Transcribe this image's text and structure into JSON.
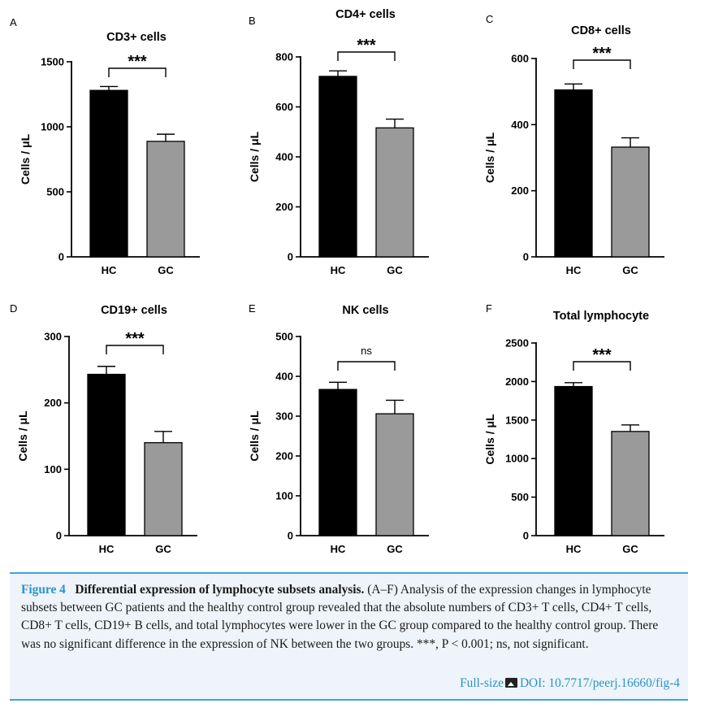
{
  "chart_data": [
    {
      "panel_letter": "A",
      "type": "bar",
      "title": "CD3+ cells",
      "ylabel": "Cells / μL",
      "categories": [
        "HC",
        "GC"
      ],
      "values": [
        1280,
        888
      ],
      "errors": [
        30,
        55
      ],
      "ylim": [
        0,
        1500
      ],
      "yticks": [
        0,
        500,
        1000,
        1500
      ],
      "significance": "***",
      "colors": [
        "#000000",
        "#9a9a9a"
      ]
    },
    {
      "panel_letter": "B",
      "type": "bar",
      "title": "CD4+ cells",
      "ylabel": "Cells / μL",
      "categories": [
        "HC",
        "GC"
      ],
      "values": [
        722,
        516
      ],
      "errors": [
        22,
        35
      ],
      "ylim": [
        0,
        800
      ],
      "yticks": [
        0,
        200,
        400,
        600,
        800
      ],
      "significance": "***",
      "colors": [
        "#000000",
        "#9a9a9a"
      ]
    },
    {
      "panel_letter": "C",
      "type": "bar",
      "title": "CD8+ cells",
      "ylabel": "Cells / μL",
      "categories": [
        "HC",
        "GC"
      ],
      "values": [
        505,
        332
      ],
      "errors": [
        18,
        28
      ],
      "ylim": [
        0,
        600
      ],
      "yticks": [
        0,
        200,
        400,
        600
      ],
      "significance": "***",
      "colors": [
        "#000000",
        "#9a9a9a"
      ]
    },
    {
      "panel_letter": "D",
      "type": "bar",
      "title": "CD19+ cells",
      "ylabel": "Cells / μL",
      "categories": [
        "HC",
        "GC"
      ],
      "values": [
        243,
        140
      ],
      "errors": [
        12,
        17
      ],
      "ylim": [
        0,
        300
      ],
      "yticks": [
        0,
        100,
        200,
        300
      ],
      "significance": "***",
      "colors": [
        "#000000",
        "#9a9a9a"
      ]
    },
    {
      "panel_letter": "E",
      "type": "bar",
      "title": "NK cells",
      "ylabel": "Cells / μL",
      "categories": [
        "HC",
        "GC"
      ],
      "values": [
        367,
        306
      ],
      "errors": [
        18,
        34
      ],
      "ylim": [
        0,
        500
      ],
      "yticks": [
        0,
        100,
        200,
        300,
        400,
        500
      ],
      "significance": "ns",
      "colors": [
        "#000000",
        "#9a9a9a"
      ]
    },
    {
      "panel_letter": "F",
      "type": "bar",
      "title": "Total lymphocyte",
      "ylabel": "Cells / μL",
      "categories": [
        "HC",
        "GC"
      ],
      "values": [
        1935,
        1352
      ],
      "errors": [
        50,
        85
      ],
      "ylim": [
        0,
        2500
      ],
      "yticks": [
        0,
        500,
        1000,
        1500,
        2000,
        2500
      ],
      "significance": "***",
      "colors": [
        "#000000",
        "#9a9a9a"
      ]
    }
  ],
  "caption": {
    "label": "Figure 4",
    "title": "Differential expression of lymphocyte subsets analysis.",
    "text": "(A–F) Analysis of the expression changes in lymphocyte subsets between GC patients and the healthy control group revealed that the absolute numbers of CD3+ T cells, CD4+ T cells, CD8+ T cells, CD19+ B cells, and total lymphocytes were lower in the GC group compared to the healthy control group. There was no significant difference in the expression of NK between the two groups. ***, P < 0.001; ns, not significant.",
    "fullsize_link": "Full-size",
    "doi_link": "DOI: 10.7717/peerj.16660/fig-4"
  },
  "icons": {
    "fullsize": "image-icon"
  }
}
